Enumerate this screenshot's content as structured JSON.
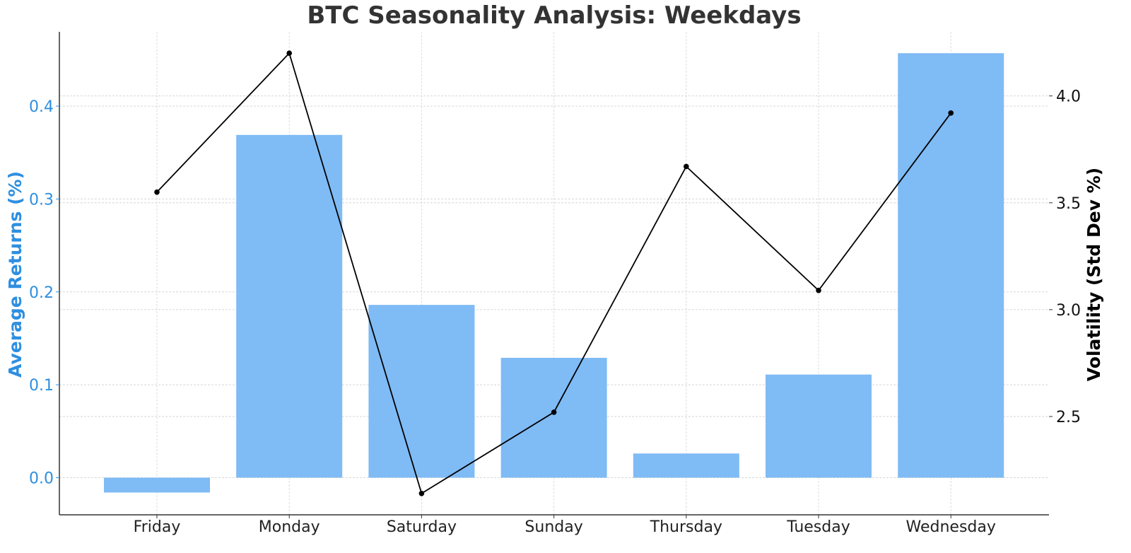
{
  "chart_data": {
    "type": "bar",
    "title": "BTC Seasonality Analysis: Weekdays",
    "xlabel": "",
    "ylabel": "Average Returns (%)",
    "ylabel_right": "Volatility (Std Dev %)",
    "categories": [
      "Friday",
      "Monday",
      "Saturday",
      "Sunday",
      "Thursday",
      "Tuesday",
      "Wednesday"
    ],
    "series": [
      {
        "name": "Average Returns (%)",
        "type": "bar",
        "axis": "left",
        "color": "#7fbbf5",
        "values": [
          -0.016,
          0.369,
          0.186,
          0.129,
          0.026,
          0.111,
          0.457
        ]
      },
      {
        "name": "Volatility (Std Dev %)",
        "type": "line",
        "axis": "right",
        "color": "#000000",
        "marker": "circle",
        "values": [
          3.55,
          4.2,
          2.14,
          2.52,
          3.67,
          3.09,
          3.92
        ]
      }
    ],
    "ylim": [
      -0.04,
      0.48
    ],
    "ylim_right": [
      2.04,
      4.3
    ],
    "yticks": [
      0.0,
      0.1,
      0.2,
      0.3,
      0.4
    ],
    "yticks_right": [
      2.5,
      3.0,
      3.5,
      4.0
    ],
    "ytick_labels": [
      "0.0",
      "0.1",
      "0.2",
      "0.3",
      "0.4"
    ],
    "ytick_labels_right": [
      "2.5",
      "3.0",
      "3.5",
      "4.0"
    ],
    "grid": true,
    "legend": null,
    "left_axis_color": "#2e8fe0"
  }
}
